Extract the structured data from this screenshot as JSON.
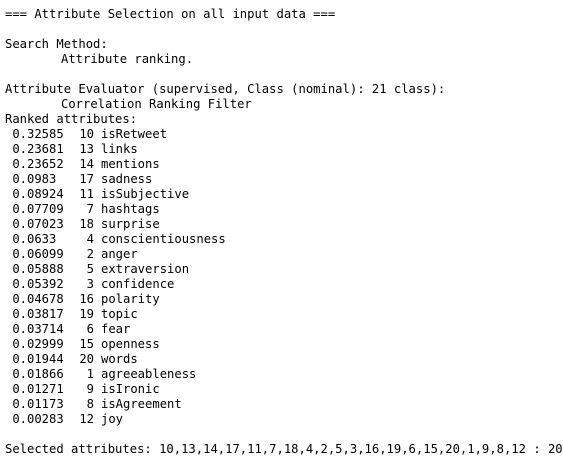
{
  "output": {
    "header": "=== Attribute Selection on all input data ===",
    "search_method_label": "Search Method:",
    "search_method_value": "Attribute ranking.",
    "evaluator_label": "Attribute Evaluator (supervised, Class (nominal): 21 class):",
    "evaluator_value": "Correlation Ranking Filter",
    "ranked_label": "Ranked attributes:",
    "ranked": [
      {
        "merit": "0.32585",
        "index": "10",
        "name": "isRetweet"
      },
      {
        "merit": "0.23681",
        "index": "13",
        "name": "links"
      },
      {
        "merit": "0.23652",
        "index": "14",
        "name": "mentions"
      },
      {
        "merit": "0.0983",
        "index": "17",
        "name": "sadness"
      },
      {
        "merit": "0.08924",
        "index": "11",
        "name": "isSubjective"
      },
      {
        "merit": "0.07709",
        "index": "7",
        "name": "hashtags"
      },
      {
        "merit": "0.07023",
        "index": "18",
        "name": "surprise"
      },
      {
        "merit": "0.0633",
        "index": "4",
        "name": "conscientiousness"
      },
      {
        "merit": "0.06099",
        "index": "2",
        "name": "anger"
      },
      {
        "merit": "0.05888",
        "index": "5",
        "name": "extraversion"
      },
      {
        "merit": "0.05392",
        "index": "3",
        "name": "confidence"
      },
      {
        "merit": "0.04678",
        "index": "16",
        "name": "polarity"
      },
      {
        "merit": "0.03817",
        "index": "19",
        "name": "topic"
      },
      {
        "merit": "0.03714",
        "index": "6",
        "name": "fear"
      },
      {
        "merit": "0.02999",
        "index": "15",
        "name": "openness"
      },
      {
        "merit": "0.01944",
        "index": "20",
        "name": "words"
      },
      {
        "merit": "0.01866",
        "index": "1",
        "name": "agreeableness"
      },
      {
        "merit": "0.01271",
        "index": "9",
        "name": "isIronic"
      },
      {
        "merit": "0.01173",
        "index": "8",
        "name": "isAgreement"
      },
      {
        "merit": "0.00283",
        "index": "12",
        "name": "joy"
      }
    ],
    "selected": "Selected attributes: 10,13,14,17,11,7,18,4,2,5,3,16,19,6,15,20,1,9,8,12 : 20"
  }
}
